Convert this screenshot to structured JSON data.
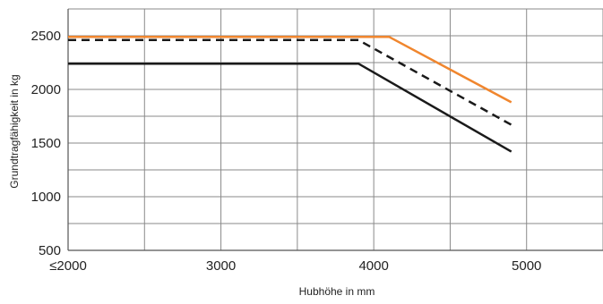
{
  "chart_data": {
    "type": "line",
    "xlabel": "Hubhöhe in mm",
    "ylabel": "Grundtragfähigkeit in kg",
    "xlim": [
      2000,
      5500
    ],
    "ylim": [
      500,
      2750
    ],
    "x_grid": [
      2000,
      2500,
      3000,
      3500,
      4000,
      4500,
      5000,
      5500
    ],
    "y_grid": [
      500,
      750,
      1000,
      1250,
      1500,
      1750,
      2000,
      2250,
      2500,
      2750
    ],
    "x_ticks": [
      {
        "value": 2000,
        "label": "≤2000"
      },
      {
        "value": 3000,
        "label": "3000"
      },
      {
        "value": 4000,
        "label": "4000"
      },
      {
        "value": 5000,
        "label": "5000"
      }
    ],
    "y_ticks": [
      {
        "value": 500,
        "label": "500"
      },
      {
        "value": 1000,
        "label": "1000"
      },
      {
        "value": 1500,
        "label": "1500"
      },
      {
        "value": 2000,
        "label": "2000"
      },
      {
        "value": 2500,
        "label": "2500"
      }
    ],
    "grid": true,
    "legend": "none",
    "series": [
      {
        "color": "#f0862e",
        "dash": "solid",
        "points": [
          [
            2000,
            2490
          ],
          [
            4100,
            2490
          ],
          [
            4900,
            1880
          ]
        ]
      },
      {
        "color": "#1a1a1a",
        "dash": "dashed",
        "points": [
          [
            2000,
            2460
          ],
          [
            3900,
            2460
          ],
          [
            4900,
            1670
          ]
        ]
      },
      {
        "color": "#1a1a1a",
        "dash": "solid",
        "points": [
          [
            2000,
            2240
          ],
          [
            3900,
            2240
          ],
          [
            4900,
            1420
          ]
        ]
      }
    ]
  }
}
